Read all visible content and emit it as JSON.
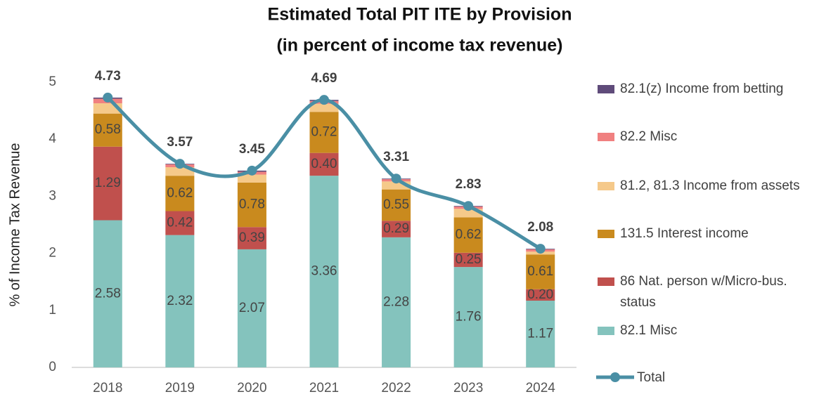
{
  "chart_data": {
    "type": "stacked_bar_line",
    "title": "Estimated Total PIT ITE by Provision",
    "subtitle": "(in percent of income tax revenue)",
    "y_label": "% of Income Tax Revenue",
    "categories": [
      "2018",
      "2019",
      "2020",
      "2021",
      "2022",
      "2023",
      "2024"
    ],
    "ylim": [
      0,
      5
    ],
    "yticks": [
      0,
      1,
      2,
      3,
      4,
      5
    ],
    "grid": false,
    "legend": "right",
    "series": [
      {
        "name": "82.1 Misc",
        "color": "#84c3bd",
        "values": [
          2.58,
          2.32,
          2.07,
          3.36,
          2.28,
          1.76,
          1.17
        ],
        "value_labels": [
          "2.58",
          "2.32",
          "2.07",
          "3.36",
          "2.28",
          "1.76",
          "1.17"
        ]
      },
      {
        "name": "86 Nat. person w/Micro-bus. status",
        "color": "#c0504d",
        "values": [
          1.29,
          0.42,
          0.39,
          0.4,
          0.29,
          0.25,
          0.2
        ],
        "value_labels": [
          "1.29",
          "0.42",
          "0.39",
          "0.40",
          "0.29",
          "0.25",
          "0.20"
        ]
      },
      {
        "name": "131.5 Interest income",
        "color": "#c98a1e",
        "values": [
          0.58,
          0.62,
          0.78,
          0.72,
          0.55,
          0.62,
          0.61
        ],
        "value_labels": [
          "0.58",
          "0.62",
          "0.78",
          "0.72",
          "0.55",
          "0.62",
          "0.61"
        ]
      },
      {
        "name": "81.2, 81.3 Income from assets",
        "color": "#f5c98a",
        "values": [
          0.18,
          0.15,
          0.14,
          0.14,
          0.14,
          0.15,
          0.05
        ]
      },
      {
        "name": "82.2 Misc",
        "color": "#f08080",
        "values": [
          0.08,
          0.05,
          0.05,
          0.05,
          0.04,
          0.04,
          0.04
        ]
      },
      {
        "name": "82.1(z) Income from betting",
        "color": "#5f4b7a",
        "values": [
          0.02,
          0.01,
          0.02,
          0.02,
          0.01,
          0.01,
          0.01
        ]
      }
    ],
    "total": {
      "name": "Total",
      "color": "#4a8fa5",
      "values": [
        4.73,
        3.57,
        3.45,
        4.69,
        3.31,
        2.83,
        2.08
      ]
    }
  }
}
